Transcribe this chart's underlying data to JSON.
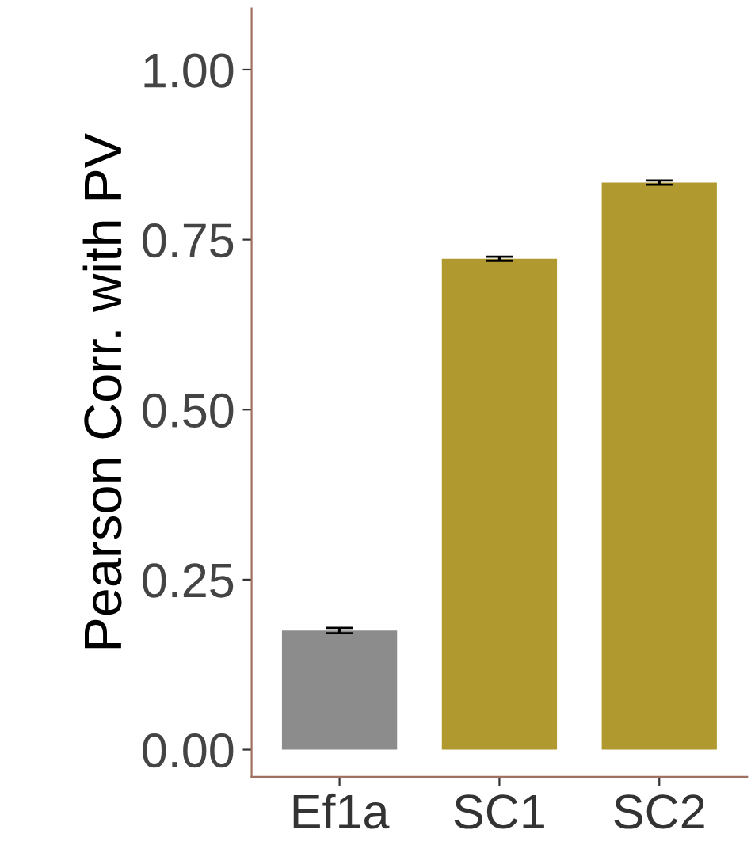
{
  "chart_data": {
    "type": "bar",
    "ylabel": "Pearson Corr. with PV",
    "categories": [
      "Ef1a",
      "SC1",
      "SC2"
    ],
    "values": [
      0.175,
      0.722,
      0.834
    ],
    "errors": [
      0.004,
      0.003,
      0.003
    ],
    "colors": [
      "#8c8c8c",
      "#b09a30",
      "#b09a30"
    ],
    "ylim": [
      -0.04,
      1.09
    ],
    "yticks": [
      {
        "value": 0,
        "label": "0.00"
      },
      {
        "value": 0.25,
        "label": "0.25"
      },
      {
        "value": 0.5,
        "label": "0.50"
      },
      {
        "value": 0.75,
        "label": "0.75"
      },
      {
        "value": 1,
        "label": "1.00"
      }
    ],
    "grid": false
  }
}
